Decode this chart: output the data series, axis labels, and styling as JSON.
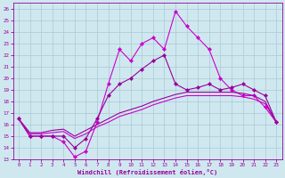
{
  "xlabel": "Windchill (Refroidissement éolien,°C)",
  "bg_color": "#cfe8f0",
  "grid_color": "#b0cdd8",
  "line_color1": "#990099",
  "line_color2": "#cc00cc",
  "xlim": [
    -0.5,
    23.5
  ],
  "ylim": [
    13,
    26.5
  ],
  "yticks": [
    13,
    14,
    15,
    16,
    17,
    18,
    19,
    20,
    21,
    22,
    23,
    24,
    25,
    26
  ],
  "xticks": [
    0,
    1,
    2,
    3,
    4,
    5,
    6,
    7,
    8,
    9,
    10,
    11,
    12,
    13,
    14,
    15,
    16,
    17,
    18,
    19,
    20,
    21,
    22,
    23
  ],
  "jagged_x": [
    0,
    1,
    2,
    3,
    4,
    5,
    6,
    7,
    8,
    9,
    10,
    11,
    12,
    13,
    14,
    15,
    16,
    17,
    18,
    19,
    20,
    21,
    22,
    23
  ],
  "jagged_y": [
    16.5,
    15.0,
    15.0,
    15.0,
    14.5,
    13.2,
    13.7,
    16.2,
    19.5,
    22.5,
    21.5,
    23.0,
    23.5,
    22.5,
    25.8,
    24.5,
    23.5,
    22.5,
    20.0,
    19.0,
    18.5,
    18.5,
    17.5,
    16.2
  ],
  "smooth_x": [
    0,
    1,
    2,
    3,
    4,
    5,
    6,
    7,
    8,
    9,
    10,
    11,
    12,
    13,
    14,
    15,
    16,
    17,
    18,
    19,
    20,
    21,
    22,
    23
  ],
  "smooth_y": [
    16.5,
    15.0,
    15.0,
    15.0,
    15.0,
    14.0,
    14.8,
    16.5,
    18.5,
    19.5,
    20.0,
    20.8,
    21.5,
    22.0,
    19.5,
    19.0,
    19.2,
    19.5,
    19.0,
    19.2,
    19.5,
    19.0,
    18.5,
    16.2
  ],
  "lower1_x": [
    0,
    1,
    2,
    3,
    4,
    5,
    6,
    7,
    8,
    9,
    10,
    11,
    12,
    13,
    14,
    15,
    16,
    17,
    18,
    19,
    20,
    21,
    22,
    23
  ],
  "lower1_y": [
    16.5,
    15.2,
    15.2,
    15.3,
    15.4,
    14.8,
    15.2,
    15.8,
    16.2,
    16.7,
    17.0,
    17.3,
    17.7,
    18.0,
    18.3,
    18.5,
    18.5,
    18.5,
    18.5,
    18.5,
    18.4,
    18.2,
    17.8,
    16.2
  ],
  "lower2_x": [
    0,
    1,
    2,
    3,
    4,
    5,
    6,
    7,
    8,
    9,
    10,
    11,
    12,
    13,
    14,
    15,
    16,
    17,
    18,
    19,
    20,
    21,
    22,
    23
  ],
  "lower2_y": [
    16.5,
    15.3,
    15.3,
    15.5,
    15.6,
    15.0,
    15.5,
    16.0,
    16.5,
    17.0,
    17.3,
    17.6,
    18.0,
    18.3,
    18.6,
    18.8,
    18.8,
    18.8,
    18.8,
    18.8,
    18.7,
    18.5,
    18.0,
    16.2
  ]
}
